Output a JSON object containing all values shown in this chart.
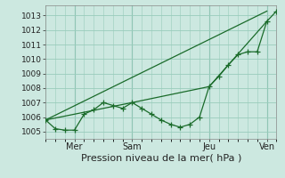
{
  "xlabel": "Pression niveau de la mer( hPa )",
  "background_color": "#cce8e0",
  "grid_color": "#99ccbb",
  "line_color": "#1a6b2a",
  "xlim": [
    0,
    24
  ],
  "ylim": [
    1004.5,
    1013.7
  ],
  "yticks": [
    1005,
    1006,
    1007,
    1008,
    1009,
    1010,
    1011,
    1012,
    1013
  ],
  "xtick_positions": [
    3,
    9,
    17,
    23
  ],
  "xtick_labels": [
    "Mer",
    "Sam",
    "Jeu",
    "Ven"
  ],
  "vline_positions": [
    3,
    9,
    17,
    23
  ],
  "line_detailed": {
    "x": [
      0,
      1,
      2,
      3,
      4,
      5,
      6,
      7,
      8,
      9,
      10,
      11,
      12,
      13,
      14,
      15,
      16,
      17,
      18,
      19,
      20,
      21,
      22,
      23,
      24
    ],
    "y": [
      1005.8,
      1005.2,
      1005.1,
      1005.1,
      1006.2,
      1006.5,
      1007.0,
      1006.8,
      1006.6,
      1007.0,
      1006.6,
      1006.2,
      1005.8,
      1005.5,
      1005.3,
      1005.5,
      1006.0,
      1008.1,
      1008.8,
      1009.6,
      1010.3,
      1010.5,
      1010.5,
      1012.6,
      1013.3
    ]
  },
  "line_high": {
    "x": [
      0,
      23
    ],
    "y": [
      1005.8,
      1013.3
    ]
  },
  "line_low": {
    "x": [
      0,
      9,
      17,
      23
    ],
    "y": [
      1005.8,
      1007.0,
      1008.1,
      1012.6
    ]
  }
}
